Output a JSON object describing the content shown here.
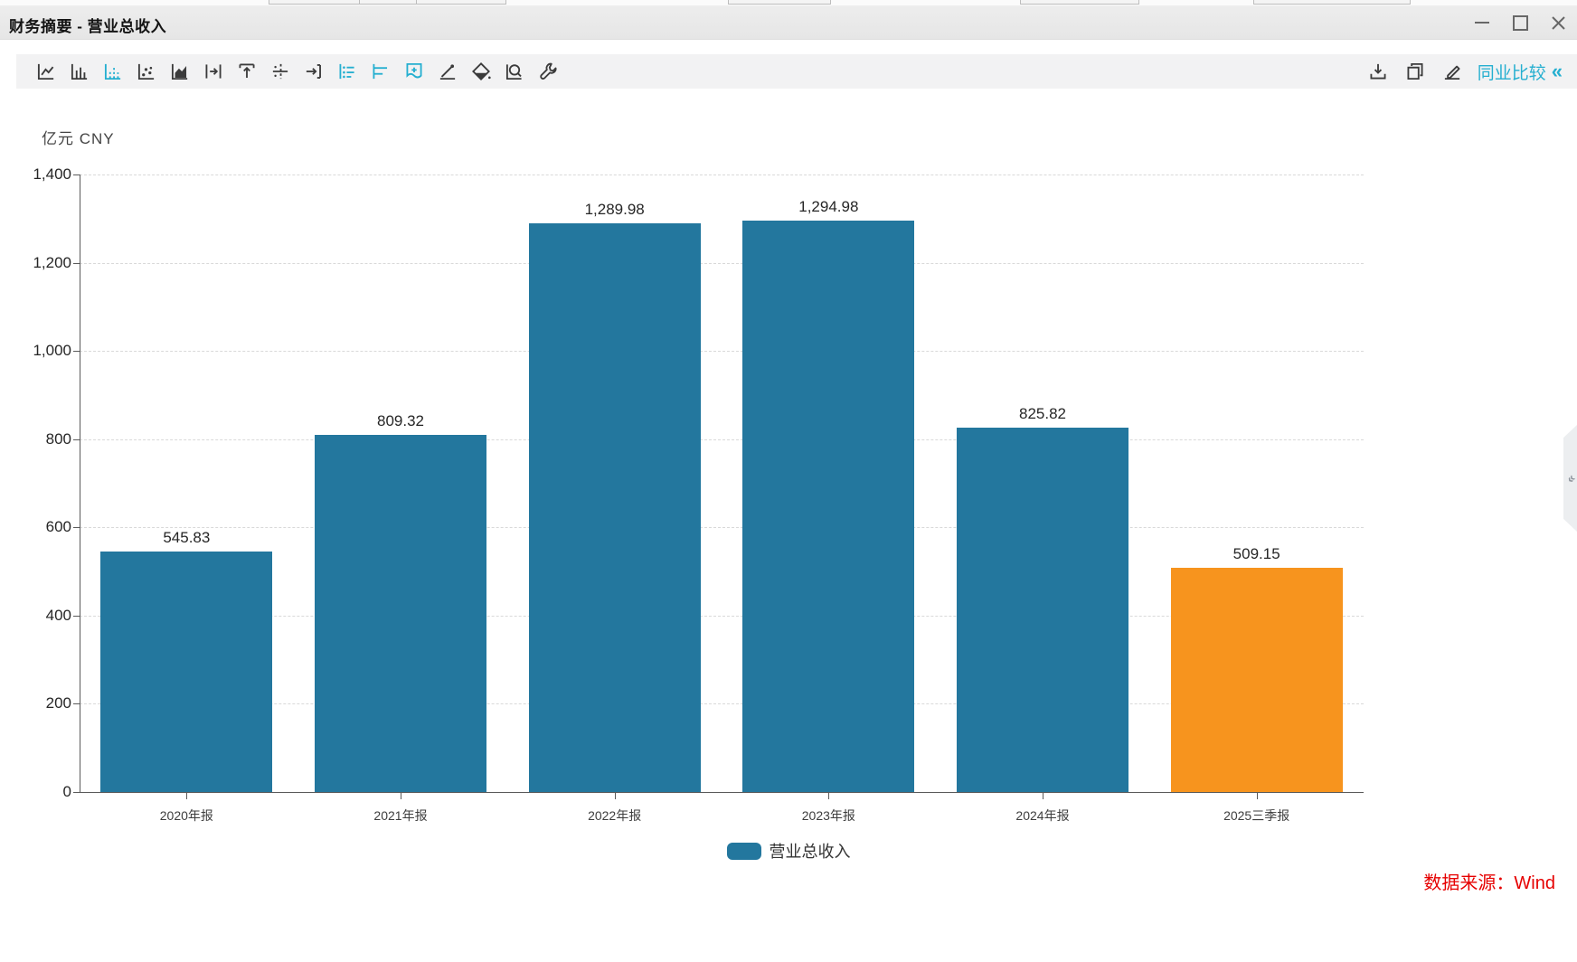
{
  "window": {
    "title": "财务摘要 - 营业总收入"
  },
  "toolbar": {
    "chart_type_icons": [
      {
        "name": "line-chart",
        "active": false
      },
      {
        "name": "bar-chart",
        "active": false
      },
      {
        "name": "dotted-bar-chart",
        "active": true
      },
      {
        "name": "scatter-chart",
        "active": false
      },
      {
        "name": "area-chart",
        "active": false
      },
      {
        "name": "shift-right",
        "active": false
      },
      {
        "name": "shift-up",
        "active": false
      },
      {
        "name": "average-line",
        "active": false
      },
      {
        "name": "arrow-right",
        "active": false
      },
      {
        "name": "value-labels",
        "active": true
      },
      {
        "name": "horizontal-bars",
        "active": true
      },
      {
        "name": "bookmark-add",
        "active": true
      },
      {
        "name": "trend-line",
        "active": false
      },
      {
        "name": "fill-color",
        "active": false
      },
      {
        "name": "zoom-area",
        "active": false
      },
      {
        "name": "settings-wrench",
        "active": false
      }
    ],
    "right_icons": [
      "download",
      "copy",
      "edit"
    ],
    "peer_compare_label": "同业比较",
    "collapse_glyph": "«",
    "panel_handle_glyph": "«"
  },
  "chart_data": {
    "type": "bar",
    "title": "财务摘要 - 营业总收入",
    "unit_label": "亿元 CNY",
    "categories": [
      "2020年报",
      "2021年报",
      "2022年报",
      "2023年报",
      "2024年报",
      "2025三季报"
    ],
    "values": [
      545.83,
      809.32,
      1289.98,
      1294.98,
      825.82,
      509.15
    ],
    "value_labels": [
      "545.83",
      "809.32",
      "1,289.98",
      "1,294.98",
      "825.82",
      "509.15"
    ],
    "bar_colors": [
      "#23779E",
      "#23779E",
      "#23779E",
      "#23779E",
      "#23779E",
      "#F7941E"
    ],
    "ylim": [
      0,
      1400
    ],
    "ytick_step": 200,
    "yticks": [
      "0",
      "200",
      "400",
      "600",
      "800",
      "1,000",
      "1,200",
      "1,400"
    ],
    "grid": "horizontal-dashed",
    "legend_position": "bottom",
    "legend": [
      {
        "label": "营业总收入",
        "color": "#23779E"
      }
    ]
  },
  "source_note": "数据来源：Wind",
  "colors": {
    "bar_blue": "#23779E",
    "bar_orange": "#F7941E",
    "accent_cyan": "#25AFD0",
    "source_red": "#E60000",
    "icon_dark": "#3B3B3B"
  }
}
